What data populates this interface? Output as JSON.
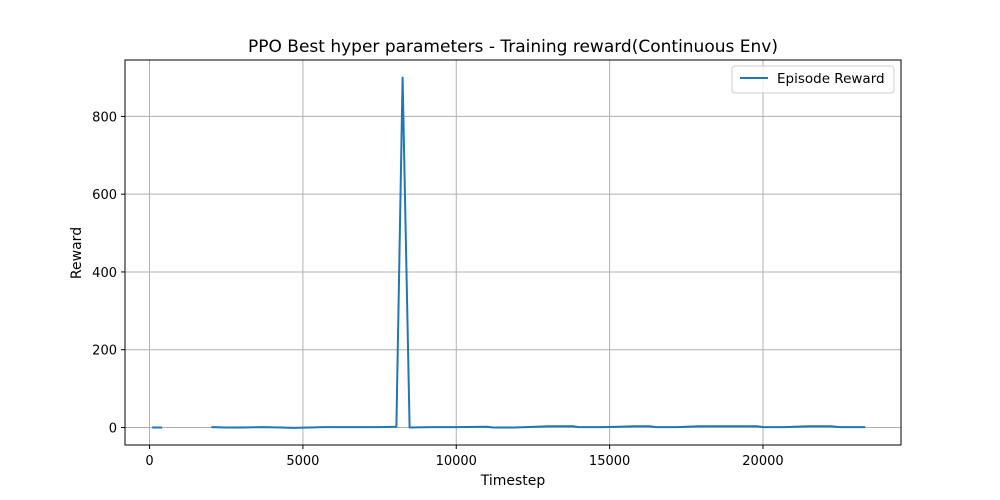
{
  "chart_data": {
    "type": "line",
    "title": "PPO Best hyper parameters - Training reward(Continuous Env)",
    "xlabel": "Timestep",
    "ylabel": "Reward",
    "xlim": [
      -800,
      24500
    ],
    "ylim": [
      -45,
      945
    ],
    "x_ticks": [
      0,
      5000,
      10000,
      15000,
      20000
    ],
    "y_ticks": [
      0,
      200,
      400,
      600,
      800
    ],
    "grid": true,
    "legend_position": "top-right",
    "series": [
      {
        "name": "Episode Reward",
        "color": "#1f77b4",
        "segments": [
          [
            [
              120,
              0
            ],
            [
              380,
              0
            ]
          ],
          [
            [
              2050,
              1
            ],
            [
              2500,
              0
            ],
            [
              3000,
              0
            ],
            [
              3700,
              1
            ],
            [
              4300,
              0
            ],
            [
              4700,
              -1
            ],
            [
              5200,
              0
            ],
            [
              5700,
              1
            ],
            [
              6300,
              1
            ],
            [
              7000,
              1
            ],
            [
              7500,
              1
            ],
            [
              8050,
              2
            ],
            [
              8250,
              900
            ],
            [
              8480,
              0
            ],
            [
              9200,
              1
            ],
            [
              10000,
              1
            ],
            [
              11000,
              2
            ],
            [
              11200,
              0
            ],
            [
              11900,
              0
            ],
            [
              12600,
              2
            ],
            [
              13000,
              3
            ],
            [
              13800,
              3
            ],
            [
              14000,
              1
            ],
            [
              14800,
              1
            ],
            [
              15300,
              2
            ],
            [
              15800,
              3
            ],
            [
              16300,
              3
            ],
            [
              16500,
              1
            ],
            [
              17200,
              1
            ],
            [
              17900,
              3
            ],
            [
              18700,
              3
            ],
            [
              19300,
              3
            ],
            [
              19800,
              3
            ],
            [
              20000,
              1
            ],
            [
              20700,
              1
            ],
            [
              21500,
              3
            ],
            [
              22200,
              3
            ],
            [
              22500,
              1
            ],
            [
              23300,
              1
            ]
          ]
        ]
      }
    ]
  }
}
